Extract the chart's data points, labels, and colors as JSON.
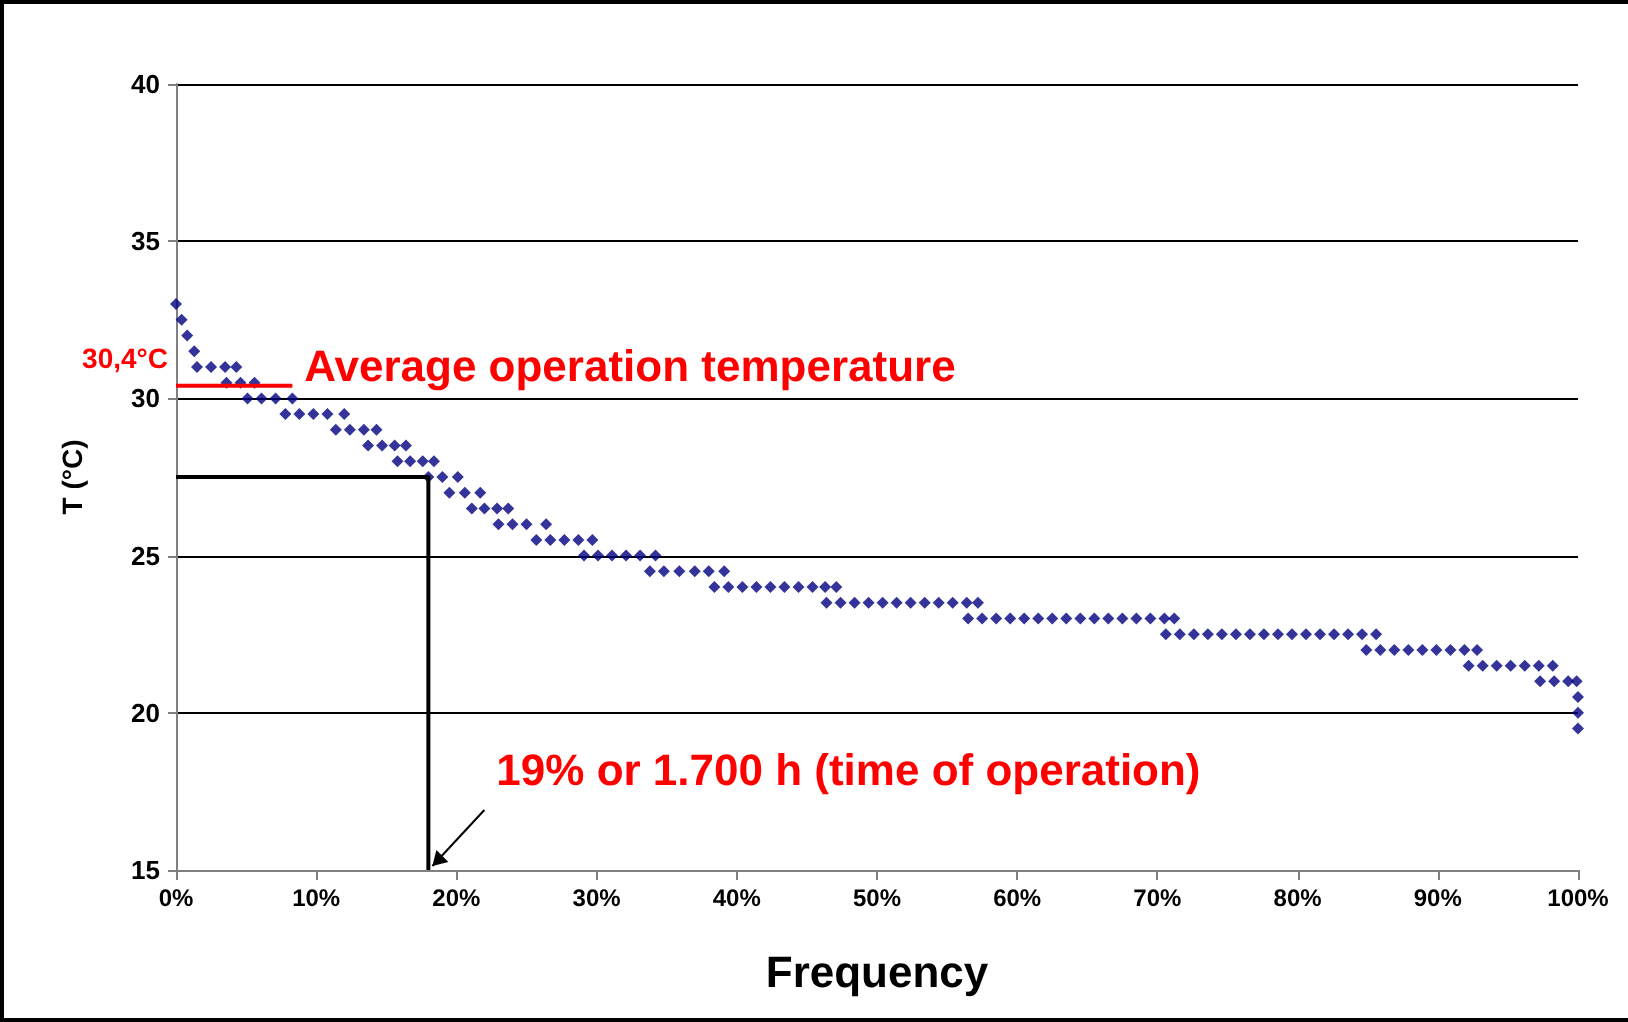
{
  "chart_data": {
    "type": "scatter",
    "xlabel": "Frequency",
    "ylabel": "T (°C)",
    "marker": "diamond",
    "grid": "y",
    "xlim": [
      0,
      100
    ],
    "ylim": [
      15,
      40
    ],
    "xticks": [
      {
        "value": 0,
        "label": "0%"
      },
      {
        "value": 10,
        "label": "10%"
      },
      {
        "value": 20,
        "label": "20%"
      },
      {
        "value": 30,
        "label": "30%"
      },
      {
        "value": 40,
        "label": "40%"
      },
      {
        "value": 50,
        "label": "50%"
      },
      {
        "value": 60,
        "label": "60%"
      },
      {
        "value": 70,
        "label": "70%"
      },
      {
        "value": 80,
        "label": "80%"
      },
      {
        "value": 90,
        "label": "90%"
      },
      {
        "value": 100,
        "label": "100%"
      }
    ],
    "yticks": [
      15,
      20,
      25,
      30,
      35,
      40
    ],
    "series": [
      {
        "color": "#000080",
        "x": [
          0,
          0.4,
          0.8,
          1.3,
          1.5,
          2.5,
          3.5,
          4.3,
          3.6,
          4.6,
          5.6,
          5.1,
          6.1,
          7.1,
          8.3,
          7.8,
          8.8,
          9.8,
          10.8,
          12,
          11.4,
          12.4,
          13.4,
          14.3,
          13.7,
          14.7,
          15.6,
          16.4,
          15.8,
          16.7,
          17.6,
          18.4,
          18,
          19,
          20.1,
          19.5,
          20.6,
          21.7,
          21.1,
          22,
          22.9,
          23.7,
          23,
          24,
          25,
          26.4,
          25.7,
          26.7,
          27.7,
          28.7,
          29.7,
          29.1,
          30.1,
          31.1,
          32.1,
          33.1,
          34.2,
          33.8,
          34.8,
          35.9,
          37,
          38,
          39.1,
          38.4,
          39.4,
          40.4,
          41.4,
          42.4,
          43.4,
          44.4,
          45.4,
          46.3,
          47.1,
          46.4,
          47.4,
          48.4,
          49.4,
          50.4,
          51.4,
          52.4,
          53.4,
          54.4,
          55.4,
          56.4,
          57.2,
          56.5,
          57.5,
          58.5,
          59.5,
          60.5,
          61.5,
          62.5,
          63.5,
          64.5,
          65.5,
          66.5,
          67.5,
          68.5,
          69.5,
          70.5,
          71.2,
          70.6,
          71.6,
          72.6,
          73.6,
          74.6,
          75.6,
          76.6,
          77.6,
          78.6,
          79.6,
          80.6,
          81.6,
          82.6,
          83.6,
          84.6,
          85.6,
          84.9,
          85.9,
          86.9,
          87.9,
          88.9,
          89.9,
          90.9,
          91.9,
          92.8,
          92.2,
          93.2,
          94.2,
          95.2,
          96.2,
          97.2,
          98.2,
          97.3,
          98.3,
          99.3,
          99.9,
          100,
          100,
          100
        ],
        "values": [
          33,
          32.5,
          32,
          31.5,
          31,
          31,
          31,
          31,
          30.5,
          30.5,
          30.5,
          30,
          30,
          30,
          30,
          29.5,
          29.5,
          29.5,
          29.5,
          29.5,
          29,
          29,
          29,
          29,
          28.5,
          28.5,
          28.5,
          28.5,
          28,
          28,
          28,
          28,
          27.5,
          27.5,
          27.5,
          27,
          27,
          27,
          26.5,
          26.5,
          26.5,
          26.5,
          26,
          26,
          26,
          26,
          25.5,
          25.5,
          25.5,
          25.5,
          25.5,
          25,
          25,
          25,
          25,
          25,
          25,
          24.5,
          24.5,
          24.5,
          24.5,
          24.5,
          24.5,
          24,
          24,
          24,
          24,
          24,
          24,
          24,
          24,
          24,
          24,
          23.5,
          23.5,
          23.5,
          23.5,
          23.5,
          23.5,
          23.5,
          23.5,
          23.5,
          23.5,
          23.5,
          23.5,
          23,
          23,
          23,
          23,
          23,
          23,
          23,
          23,
          23,
          23,
          23,
          23,
          23,
          23,
          23,
          23,
          22.5,
          22.5,
          22.5,
          22.5,
          22.5,
          22.5,
          22.5,
          22.5,
          22.5,
          22.5,
          22.5,
          22.5,
          22.5,
          22.5,
          22.5,
          22.5,
          22,
          22,
          22,
          22,
          22,
          22,
          22,
          22,
          22,
          21.5,
          21.5,
          21.5,
          21.5,
          21.5,
          21.5,
          21.5,
          21,
          21,
          21,
          21,
          20.5,
          20,
          19.5
        ]
      },
      {
        "type": "line",
        "color": "#ff0000",
        "marker": "none",
        "line_style": "solid",
        "x": [
          0,
          8.3
        ],
        "values": [
          30.4,
          30.4
        ]
      },
      {
        "type": "line",
        "color": "#000000",
        "marker": "none",
        "line_style": "solid",
        "x": [
          0,
          18,
          18
        ],
        "values": [
          27.5,
          27.5,
          15
        ]
      }
    ],
    "annotations": [
      {
        "text": "30,4°C",
        "x": 0,
        "y": 30.4
      },
      {
        "text": "Average operation temperature",
        "x": 8.3,
        "y": 30.4
      },
      {
        "text": "19% or 1.700 h (time of operation)",
        "x": 18,
        "y": 15
      }
    ]
  }
}
